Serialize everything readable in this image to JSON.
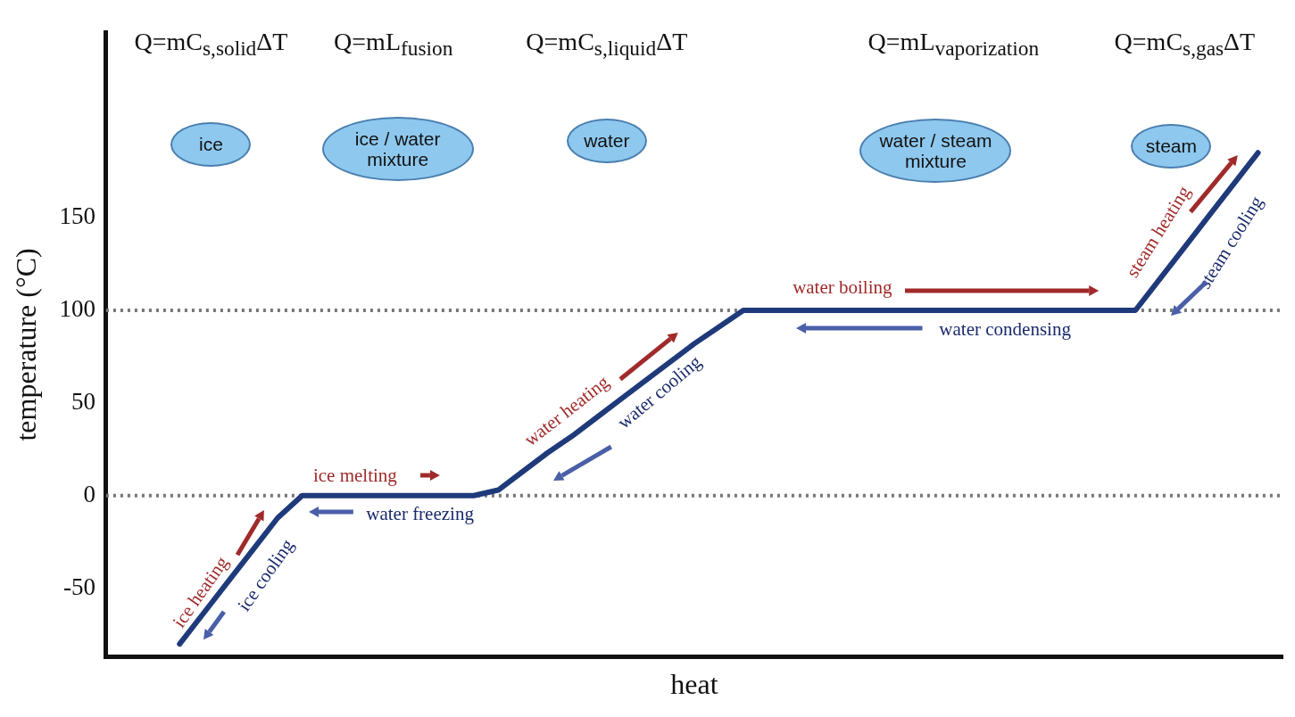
{
  "chart_data": {
    "type": "line",
    "xlabel": "heat",
    "ylabel": "temperature (°C)",
    "categories": [
      null,
      null,
      null,
      null,
      null,
      null,
      null,
      null,
      null,
      null,
      null,
      null,
      null,
      null,
      null,
      null,
      null,
      null,
      null,
      null,
      null,
      null,
      null,
      null,
      null,
      null,
      null,
      null,
      null,
      null,
      null,
      null,
      null,
      null,
      null,
      null,
      null,
      null,
      null,
      null,
      null,
      null,
      null,
      null,
      null,
      null,
      null,
      null,
      null
    ],
    "series": [
      {
        "color": "#1f3a7a",
        "values": [
          null,
          null,
          null,
          -80,
          -63,
          -46,
          -29,
          -12,
          0,
          0,
          0,
          0,
          0,
          0,
          0,
          0,
          3,
          13,
          23,
          32,
          42,
          52,
          62,
          72,
          82,
          91,
          100,
          100,
          100,
          100,
          100,
          100,
          100,
          100,
          100,
          100,
          100,
          100,
          100,
          100,
          100,
          100,
          100,
          117,
          134,
          151,
          168,
          185,
          null
        ]
      }
    ],
    "ylim": [
      -87,
      250
    ],
    "yticks": [
      -50,
      0,
      50,
      100,
      150
    ],
    "tick_labels": "y",
    "grid": false,
    "legend": false,
    "marker": "none",
    "line_style": "solid",
    "ref_lines": [
      {
        "axis": "y",
        "value": 0,
        "color": "#777777",
        "line_style": "dotted"
      },
      {
        "axis": "y",
        "value": 100,
        "color": "#777777",
        "line_style": "dotted"
      }
    ],
    "annotations": [
      "Q=mC$_{s,solid}$ΔT",
      "Q=mL$_{fusion}$",
      "Q=mC$_{s,liquid}$ΔT",
      "Q=mL$_{vaporization}$",
      "Q=mC$_{s,gas}$ΔT",
      "ice",
      "ice / water mixture",
      "water",
      "water / steam mixture",
      "steam",
      "ice heating",
      "ice cooling",
      "ice melting",
      "water freezing",
      "water heating",
      "water cooling",
      "water boiling",
      "water condensing",
      "steam heating",
      "steam cooling"
    ]
  }
}
